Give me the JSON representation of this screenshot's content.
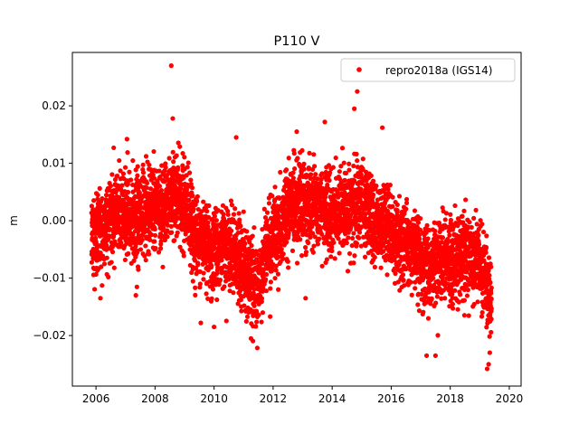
{
  "chart_data": {
    "type": "scatter",
    "title": "P110 V",
    "xlabel": "",
    "ylabel": "m",
    "xlim": [
      2005.2,
      2020.4
    ],
    "ylim": [
      -0.0288,
      0.0293
    ],
    "xticks": [
      2006,
      2008,
      2010,
      2012,
      2014,
      2016,
      2018,
      2020
    ],
    "xtick_labels": [
      "2006",
      "2008",
      "2010",
      "2012",
      "2014",
      "2016",
      "2018",
      "2020"
    ],
    "yticks": [
      -0.02,
      -0.01,
      0.0,
      0.01,
      0.02
    ],
    "ytick_labels": [
      "−0.02",
      "−0.01",
      "0.00",
      "0.01",
      "0.02"
    ],
    "grid": false,
    "legend_position": "top-right",
    "series": [
      {
        "name": "repro2018a (IGS14)",
        "color": "#ff0000",
        "marker": "circle",
        "trend": [
          [
            2005.85,
            -0.002
          ],
          [
            2006.3,
            -0.002
          ],
          [
            2006.7,
            0.002
          ],
          [
            2007.2,
            0.0
          ],
          [
            2007.7,
            0.002
          ],
          [
            2008.2,
            0.003
          ],
          [
            2008.6,
            0.005
          ],
          [
            2009.0,
            0.003
          ],
          [
            2009.4,
            -0.003
          ],
          [
            2009.9,
            -0.005
          ],
          [
            2010.4,
            -0.004
          ],
          [
            2010.8,
            -0.006
          ],
          [
            2011.2,
            -0.01
          ],
          [
            2011.5,
            -0.012
          ],
          [
            2011.8,
            -0.005
          ],
          [
            2012.2,
            -0.001
          ],
          [
            2012.6,
            0.003
          ],
          [
            2013.0,
            0.004
          ],
          [
            2013.5,
            0.002
          ],
          [
            2014.0,
            0.001
          ],
          [
            2014.5,
            0.002
          ],
          [
            2015.0,
            0.003
          ],
          [
            2015.4,
            0.0
          ],
          [
            2015.8,
            0.0
          ],
          [
            2016.2,
            -0.004
          ],
          [
            2016.6,
            -0.004
          ],
          [
            2017.0,
            -0.007
          ],
          [
            2017.3,
            -0.008
          ],
          [
            2017.7,
            -0.006
          ],
          [
            2018.2,
            -0.007
          ],
          [
            2018.6,
            -0.006
          ],
          [
            2019.0,
            -0.008
          ],
          [
            2019.4,
            -0.013
          ]
        ],
        "noise_std": 0.0035,
        "n_points": 4800,
        "x_range": [
          2005.85,
          2019.4
        ],
        "notable_points": [
          [
            2008.55,
            0.027
          ],
          [
            2008.6,
            0.0178
          ],
          [
            2014.85,
            0.0225
          ],
          [
            2014.75,
            0.0195
          ],
          [
            2013.75,
            0.0172
          ],
          [
            2015.7,
            0.0162
          ],
          [
            2012.8,
            0.0155
          ],
          [
            2010.75,
            0.0145
          ],
          [
            2007.05,
            0.0142
          ],
          [
            2006.6,
            0.0127
          ],
          [
            2011.25,
            -0.0205
          ],
          [
            2011.9,
            -0.0167
          ],
          [
            2009.55,
            -0.0178
          ],
          [
            2010.0,
            -0.0185
          ],
          [
            2017.2,
            -0.0235
          ],
          [
            2017.5,
            -0.0235
          ],
          [
            2019.25,
            -0.0258
          ],
          [
            2019.3,
            -0.025
          ],
          [
            2006.15,
            -0.0135
          ],
          [
            2007.35,
            -0.013
          ],
          [
            2013.1,
            -0.0135
          ]
        ]
      }
    ]
  }
}
